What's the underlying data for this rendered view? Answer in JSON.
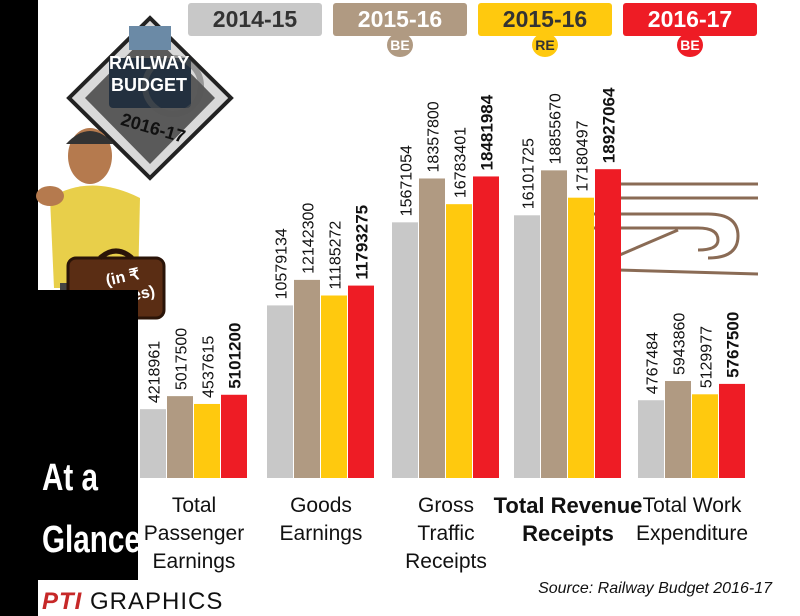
{
  "legend": [
    {
      "label": "2014-15",
      "tag": "",
      "color": "#c8c8c8",
      "text_color": "#333333"
    },
    {
      "label": "2015-16",
      "tag": "BE",
      "color": "#b09a82",
      "text_color": "#ffffff"
    },
    {
      "label": "2015-16",
      "tag": "RE",
      "color": "#ffc90e",
      "text_color": "#333333"
    },
    {
      "label": "2016-17",
      "tag": "BE",
      "color": "#ee1c25",
      "text_color": "#ffffff"
    }
  ],
  "badge": {
    "title_line1": "RAILWAY",
    "title_line2": "BUDGET",
    "year": "2016-17"
  },
  "unit_note": "(in ₹ Crores)",
  "side_title": {
    "line1": "At a",
    "line2": "Glance"
  },
  "source": "Source: Railway Budget 2016-17",
  "credit": {
    "brand": "PTI",
    "word": "GRAPHICS"
  },
  "chart_data": {
    "type": "bar",
    "title": "",
    "xlabel": "",
    "ylabel": "",
    "categories": [
      {
        "lines": [
          "Total",
          "Passenger",
          "Earnings"
        ],
        "bold": false
      },
      {
        "lines": [
          "Goods",
          "Earnings"
        ],
        "bold": false
      },
      {
        "lines": [
          "Gross",
          "Traffic",
          "Receipts"
        ],
        "bold": false
      },
      {
        "lines": [
          "Total Revenue",
          "Receipts"
        ],
        "bold": true
      },
      {
        "lines": [
          "Total Work",
          "Expenditure"
        ],
        "bold": false
      }
    ],
    "series": [
      {
        "name": "2014-15",
        "color": "#c8c8c8",
        "values": [
          4218961,
          10579134,
          15671054,
          16101725,
          4767484
        ],
        "labels": [
          "4218961",
          "10579134",
          "15671054",
          "16101725",
          "4767484"
        ]
      },
      {
        "name": "2015-16 BE",
        "color": "#b09a82",
        "values": [
          5017500,
          12142300,
          18357800,
          18855670,
          5943860
        ],
        "labels": [
          "5017500",
          "12142300",
          "18357800",
          "18855670",
          "5943860"
        ]
      },
      {
        "name": "2015-16 RE",
        "color": "#ffc90e",
        "values": [
          4537615,
          11185272,
          16783401,
          17180497,
          5129977
        ],
        "labels": [
          "4537615",
          "11185272",
          "16783401",
          "17180497",
          "5129977"
        ]
      },
      {
        "name": "2016-17 BE",
        "color": "#ee1c25",
        "values": [
          5101200,
          11793275,
          18481984,
          18927064,
          5767500
        ],
        "labels": [
          "5101200",
          "11793275",
          "18481984",
          "18927064",
          "5767500"
        ]
      }
    ],
    "grid": false,
    "legend_position": "top"
  }
}
